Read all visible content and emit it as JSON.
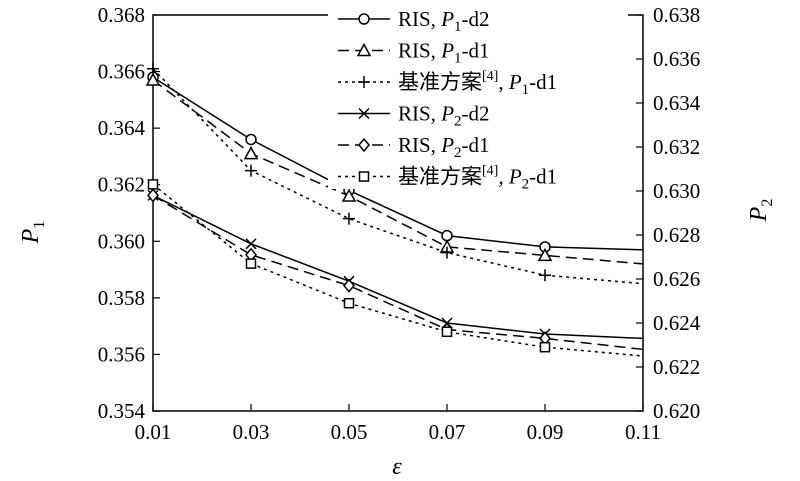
{
  "chart_data": {
    "type": "line",
    "xlabel": "ε",
    "ylabel_left": {
      "base": "P",
      "sub": "1"
    },
    "ylabel_right": {
      "base": "P",
      "sub": "2"
    },
    "x": [
      0.01,
      0.03,
      0.05,
      0.07,
      0.09,
      0.11
    ],
    "xticks": [
      "0.01",
      "0.03",
      "0.05",
      "0.07",
      "0.09",
      "0.11"
    ],
    "xlim": [
      0.01,
      0.11
    ],
    "ylim_left": [
      0.354,
      0.368
    ],
    "ylim_right": [
      0.62,
      0.638
    ],
    "yticks_left": [
      "0.354",
      "0.356",
      "0.358",
      "0.360",
      "0.362",
      "0.364",
      "0.366",
      "0.368"
    ],
    "yticks_right": [
      "0.620",
      "0.622",
      "0.624",
      "0.626",
      "0.628",
      "0.630",
      "0.632",
      "0.634",
      "0.636",
      "0.638"
    ],
    "legend_position": "top-right",
    "series": [
      {
        "name": "RIS, P1-d2",
        "legend": {
          "pre": "RIS, ",
          "sup": "",
          "var": "P",
          "sub": "1",
          "post": "-d2"
        },
        "axis": "left",
        "line": "solid",
        "marker": "circle",
        "values": [
          0.3658,
          0.3636,
          0.3618,
          0.3602,
          0.3598,
          0.3597
        ]
      },
      {
        "name": "RIS, P1-d1",
        "legend": {
          "pre": "RIS, ",
          "sup": "",
          "var": "P",
          "sub": "1",
          "post": "-d1"
        },
        "axis": "left",
        "line": "dashed",
        "marker": "triangle",
        "values": [
          0.3657,
          0.3631,
          0.3616,
          0.3598,
          0.3595,
          0.3592
        ]
      },
      {
        "name": "基准方案[4], P1-d1",
        "legend": {
          "pre": "基准方案",
          "sup": "[4]",
          "var": ", P",
          "sub": "1",
          "post": "-d1"
        },
        "axis": "left",
        "line": "dotted",
        "marker": "plus",
        "values": [
          0.3661,
          0.3625,
          0.3608,
          0.3596,
          0.3588,
          0.3585
        ]
      },
      {
        "name": "RIS, P2-d2",
        "legend": {
          "pre": "RIS, ",
          "sup": "",
          "var": "P",
          "sub": "2",
          "post": "-d2"
        },
        "axis": "right",
        "line": "solid",
        "marker": "x",
        "values": [
          0.6298,
          0.6276,
          0.6259,
          0.624,
          0.6235,
          0.6233
        ]
      },
      {
        "name": "RIS, P2-d1",
        "legend": {
          "pre": "RIS, ",
          "sup": "",
          "var": "P",
          "sub": "2",
          "post": "-d1"
        },
        "axis": "right",
        "line": "dashed",
        "marker": "diamond",
        "values": [
          0.6298,
          0.6271,
          0.6257,
          0.6237,
          0.6233,
          0.6228
        ]
      },
      {
        "name": "基准方案[4], P2-d1",
        "legend": {
          "pre": "基准方案",
          "sup": "[4]",
          "var": ", P",
          "sub": "2",
          "post": "-d1"
        },
        "axis": "right",
        "line": "dotted",
        "marker": "square",
        "values": [
          0.6303,
          0.6267,
          0.6249,
          0.6236,
          0.6229,
          0.6225
        ]
      }
    ]
  }
}
